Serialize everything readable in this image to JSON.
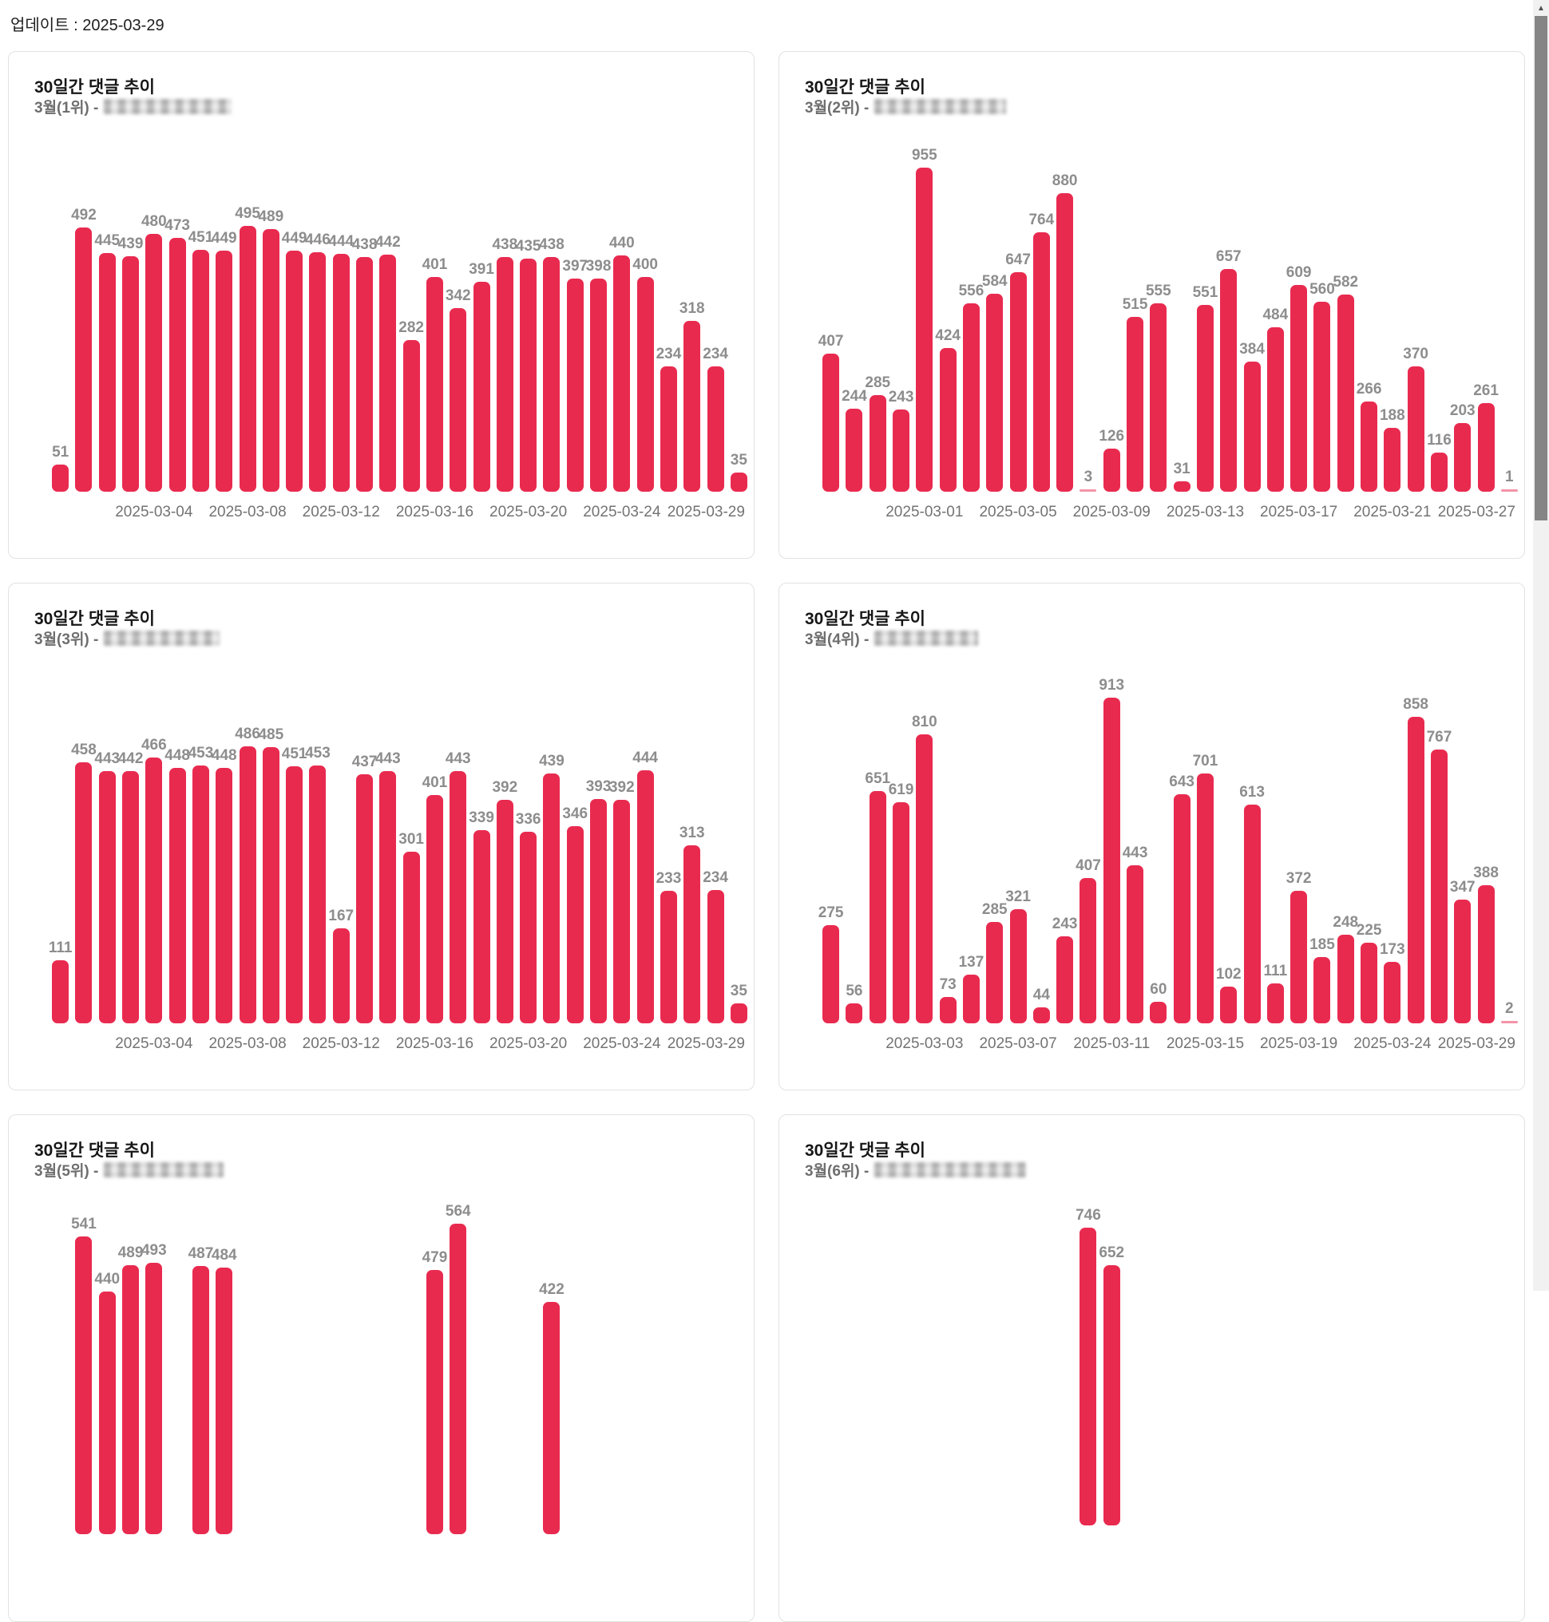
{
  "page": {
    "updated": "업데이트 : 2025-03-29"
  },
  "scrollbar": {
    "up_arrow": "▲"
  },
  "colors": {
    "bar": "#e92a4f",
    "value_label": "#8d8d8d",
    "tick_label": "#737373",
    "card_border": "#e2e2e2"
  },
  "chart_data": [
    {
      "type": "bar",
      "title": "30일간 댓글 추이",
      "subtitle_prefix": "3월(1위) - ",
      "subtitle_redacted": true,
      "xlabel": "",
      "ylabel": "",
      "bar_color": "#e92a4f",
      "values": [
        51,
        492,
        445,
        439,
        480,
        473,
        451,
        449,
        495,
        489,
        449,
        446,
        444,
        438,
        442,
        282,
        401,
        342,
        391,
        438,
        435,
        438,
        397,
        398,
        440,
        400,
        234,
        318,
        234,
        35
      ],
      "x_tick_labels": [
        "2025-03-04",
        "2025-03-08",
        "2025-03-12",
        "2025-03-16",
        "2025-03-20",
        "2025-03-24",
        "2025-03-29"
      ]
    },
    {
      "type": "bar",
      "title": "30일간 댓글 추이",
      "subtitle_prefix": "3월(2위) - ",
      "subtitle_redacted": true,
      "xlabel": "",
      "ylabel": "",
      "bar_color": "#e92a4f",
      "values": [
        407,
        244,
        285,
        243,
        955,
        424,
        556,
        584,
        647,
        764,
        880,
        3,
        126,
        515,
        555,
        31,
        551,
        657,
        384,
        484,
        609,
        560,
        582,
        266,
        188,
        370,
        116,
        203,
        261,
        1
      ],
      "x_tick_labels": [
        "2025-03-01",
        "2025-03-05",
        "2025-03-09",
        "2025-03-13",
        "2025-03-17",
        "2025-03-21",
        "2025-03-27"
      ]
    },
    {
      "type": "bar",
      "title": "30일간 댓글 추이",
      "subtitle_prefix": "3월(3위) - ",
      "subtitle_redacted": true,
      "xlabel": "",
      "ylabel": "",
      "bar_color": "#e92a4f",
      "values": [
        111,
        458,
        443,
        442,
        466,
        448,
        453,
        448,
        486,
        485,
        451,
        453,
        167,
        437,
        443,
        301,
        401,
        443,
        339,
        392,
        336,
        439,
        346,
        393,
        392,
        444,
        233,
        313,
        234,
        35
      ],
      "x_tick_labels": [
        "2025-03-04",
        "2025-03-08",
        "2025-03-12",
        "2025-03-16",
        "2025-03-20",
        "2025-03-24",
        "2025-03-29"
      ]
    },
    {
      "type": "bar",
      "title": "30일간 댓글 추이",
      "subtitle_prefix": "3월(4위) - ",
      "subtitle_redacted": true,
      "xlabel": "",
      "ylabel": "",
      "bar_color": "#e92a4f",
      "values": [
        275,
        56,
        651,
        619,
        810,
        73,
        137,
        285,
        321,
        44,
        243,
        407,
        913,
        443,
        60,
        643,
        701,
        102,
        613,
        111,
        372,
        185,
        248,
        225,
        173,
        858,
        767,
        347,
        388,
        2
      ],
      "x_tick_labels": [
        "2025-03-03",
        "2025-03-07",
        "2025-03-11",
        "2025-03-15",
        "2025-03-19",
        "2025-03-24",
        "2025-03-29"
      ]
    },
    {
      "type": "bar",
      "title": "30일간 댓글 추이",
      "subtitle_prefix": "3월(5위) - ",
      "subtitle_redacted": true,
      "xlabel": "",
      "ylabel": "",
      "bar_color": "#e92a4f",
      "values": [
        null,
        541,
        440,
        489,
        493,
        null,
        487,
        484,
        null,
        null,
        null,
        null,
        null,
        null,
        null,
        null,
        479,
        564,
        null,
        null,
        null,
        422,
        null,
        null,
        null,
        null,
        null,
        null,
        null,
        null
      ],
      "x_tick_labels": []
    },
    {
      "type": "bar",
      "title": "30일간 댓글 추이",
      "subtitle_prefix": "3월(6위) - ",
      "subtitle_redacted": true,
      "xlabel": "",
      "ylabel": "",
      "bar_color": "#e92a4f",
      "values": [
        null,
        null,
        null,
        null,
        null,
        null,
        null,
        null,
        null,
        null,
        null,
        746,
        652,
        null,
        null,
        null,
        null,
        null,
        null,
        null,
        null,
        null,
        null,
        null,
        null,
        null,
        null,
        null,
        null,
        null
      ],
      "x_tick_labels": []
    }
  ]
}
